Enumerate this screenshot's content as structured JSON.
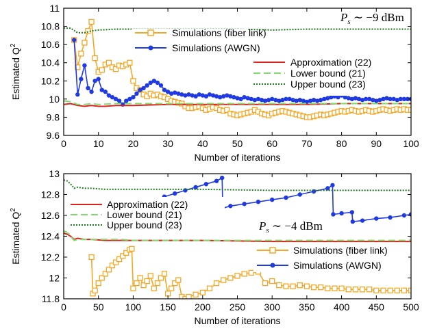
{
  "chart_data": [
    {
      "type": "line",
      "xlabel": "Number of iterations",
      "ylabel": "Estimated Q",
      "ylabel_sup": "2",
      "xlim": [
        0,
        100
      ],
      "ylim": [
        9.6,
        11
      ],
      "xticks": [
        0,
        10,
        20,
        30,
        40,
        50,
        60,
        70,
        80,
        90,
        100
      ],
      "yticks": [
        9.6,
        9.8,
        10,
        10.2,
        10.4,
        10.6,
        10.8,
        11
      ],
      "grid": false,
      "annotation": "P_s ~ −9 dBm",
      "legends": [
        "Simulations (fiber link)",
        "Simulations (AWGN)",
        "Approximation (22)",
        "Lower bound (21)",
        "Upper bound (23)"
      ],
      "series": [
        {
          "name": "Simulations (fiber link)",
          "color": "#f5a623",
          "marker": "square",
          "x": [
            3,
            4,
            5,
            6,
            7,
            8,
            9,
            10,
            11,
            12,
            13,
            14,
            15,
            16,
            17,
            18,
            19,
            20,
            21,
            22,
            23,
            24,
            25,
            26,
            27,
            28,
            29,
            30,
            31,
            32,
            33,
            34,
            35,
            36,
            37,
            38,
            39,
            40,
            41,
            42,
            43,
            44,
            45,
            46,
            47,
            48,
            49,
            50,
            51,
            52,
            53,
            54,
            55,
            56,
            57,
            58,
            59,
            60,
            61,
            62,
            63,
            64,
            65,
            66,
            67,
            68,
            69,
            70,
            71,
            72,
            73,
            74,
            75,
            76,
            77,
            78,
            79,
            80,
            81,
            82,
            83,
            84,
            85,
            86,
            87,
            88,
            89,
            90,
            91,
            92,
            93,
            94,
            95,
            96,
            97,
            98,
            99,
            100
          ],
          "values": [
            10.65,
            10.35,
            10.5,
            10.62,
            10.75,
            10.85,
            10.45,
            10.3,
            10.32,
            10.38,
            10.4,
            10.35,
            10.33,
            10.37,
            10.36,
            10.38,
            10.4,
            10.2,
            10.12,
            10.1,
            10.05,
            10.03,
            10.06,
            10.04,
            10.05,
            10.03,
            10.02,
            10.0,
            9.98,
            9.97,
            9.96,
            9.95,
            9.92,
            9.9,
            9.9,
            9.91,
            9.92,
            9.9,
            9.88,
            9.89,
            9.91,
            9.9,
            9.88,
            9.87,
            9.88,
            9.84,
            9.83,
            9.82,
            9.83,
            9.84,
            9.85,
            9.86,
            9.88,
            9.86,
            9.84,
            9.83,
            9.82,
            9.84,
            9.85,
            9.86,
            9.87,
            9.86,
            9.85,
            9.84,
            9.83,
            9.82,
            9.81,
            9.8,
            9.8,
            9.81,
            9.82,
            9.83,
            9.82,
            9.83,
            9.84,
            9.85,
            9.86,
            9.87,
            9.86,
            9.87,
            9.88,
            9.87,
            9.86,
            9.87,
            9.88,
            9.87,
            9.86,
            9.87,
            9.88,
            9.89,
            9.88,
            9.87,
            9.88,
            9.89,
            9.88,
            9.89,
            9.88,
            9.88
          ]
        },
        {
          "name": "Simulations (AWGN)",
          "color": "#1f3ae0",
          "marker": "circle",
          "x": [
            3,
            4,
            5,
            6,
            7,
            8,
            9,
            10,
            11,
            12,
            13,
            14,
            15,
            16,
            17,
            18,
            19,
            20,
            21,
            22,
            23,
            24,
            25,
            26,
            27,
            28,
            29,
            30,
            31,
            32,
            33,
            34,
            35,
            36,
            37,
            38,
            39,
            40,
            41,
            42,
            43,
            44,
            45,
            46,
            47,
            48,
            49,
            50,
            51,
            52,
            53,
            54,
            55,
            56,
            57,
            58,
            59,
            60,
            61,
            62,
            63,
            64,
            65,
            66,
            67,
            68,
            69,
            70,
            71,
            72,
            73,
            74,
            75,
            76,
            77,
            78,
            79,
            80,
            81,
            82,
            83,
            84,
            85,
            86,
            87,
            88,
            89,
            90,
            91,
            92,
            93,
            94,
            95,
            96,
            97,
            98,
            99,
            100
          ],
          "values": [
            10.65,
            10.05,
            10.22,
            10.37,
            10.12,
            10.08,
            10.2,
            10.22,
            10.1,
            10.08,
            10.04,
            10.02,
            10.0,
            9.98,
            9.94,
            9.98,
            10.0,
            10.02,
            10.06,
            10.1,
            10.12,
            10.15,
            10.18,
            10.2,
            10.18,
            10.15,
            10.1,
            10.08,
            10.06,
            10.07,
            10.06,
            10.05,
            10.04,
            10.05,
            10.04,
            10.03,
            10.05,
            10.04,
            10.03,
            10.05,
            10.04,
            10.03,
            10.02,
            10.03,
            10.04,
            10.03,
            10.02,
            10.01,
            10.0,
            10.02,
            10.01,
            10.0,
            9.99,
            10.0,
            9.99,
            9.98,
            9.99,
            10.0,
            9.99,
            9.98,
            9.99,
            10.0,
            10.0,
            9.99,
            9.98,
            9.99,
            9.98,
            9.97,
            9.98,
            9.99,
            9.98,
            9.99,
            10.0,
            10.01,
            10.02,
            10.03,
            10.02,
            10.04,
            10.02,
            10.01,
            10.0,
            10.01,
            10.0,
            9.99,
            10.0,
            10.0,
            9.99,
            9.98,
            9.99,
            10.0,
            10.01,
            10.0,
            10.0,
            9.99,
            10.0,
            10.0,
            10.0,
            10.0
          ]
        },
        {
          "name": "Approximation (22)",
          "color": "#e02020",
          "style": "solid",
          "x": [
            0,
            2,
            4,
            6,
            8,
            10,
            12,
            15,
            20,
            30,
            40,
            50,
            60,
            70,
            80,
            90,
            100
          ],
          "values": [
            9.94,
            9.95,
            9.93,
            9.92,
            9.93,
            9.92,
            9.92,
            9.93,
            9.93,
            9.94,
            9.94,
            9.94,
            9.94,
            9.94,
            9.95,
            9.95,
            9.95
          ]
        },
        {
          "name": "Lower bound (21)",
          "color": "#7ddc6a",
          "style": "dashed",
          "x": [
            0,
            2,
            4,
            6,
            8,
            10,
            15,
            20,
            30,
            40,
            50,
            60,
            70,
            80,
            90,
            100
          ],
          "values": [
            9.98,
            9.97,
            9.94,
            9.94,
            9.95,
            9.94,
            9.95,
            9.95,
            9.95,
            9.95,
            9.95,
            9.95,
            9.95,
            9.95,
            9.95,
            9.95
          ]
        },
        {
          "name": "Upper bound (23)",
          "color": "#1a7a1a",
          "style": "dotted",
          "x": [
            0,
            2,
            4,
            6,
            8,
            10,
            15,
            20,
            30,
            40,
            50,
            60,
            70,
            80,
            90,
            100
          ],
          "values": [
            10.78,
            10.78,
            10.73,
            10.73,
            10.75,
            10.76,
            10.77,
            10.77,
            10.77,
            10.77,
            10.77,
            10.76,
            10.77,
            10.77,
            10.77,
            10.77
          ]
        }
      ]
    },
    {
      "type": "line",
      "xlabel": "Number of iterations",
      "ylabel": "Estimated Q",
      "ylabel_sup": "2",
      "xlim": [
        0,
        500
      ],
      "ylim": [
        11.8,
        13
      ],
      "xticks": [
        0,
        50,
        100,
        150,
        200,
        250,
        300,
        350,
        400,
        450,
        500
      ],
      "yticks": [
        11.8,
        12,
        12.2,
        12.4,
        12.6,
        12.8,
        13
      ],
      "grid": false,
      "annotation": "P_s ~ −4 dBm",
      "legends": [
        "Approximation (22)",
        "Lower bound (21)",
        "Upper bound (23)",
        "Simulations (fiber link)",
        "Simulations (AWGN)"
      ],
      "series": [
        {
          "name": "Simulations (fiber link)",
          "color": "#f5a623",
          "marker": "square",
          "x": [
            40,
            42,
            45,
            50,
            55,
            60,
            65,
            70,
            75,
            80,
            85,
            90,
            95,
            98,
            100,
            105,
            110,
            115,
            120,
            125,
            130,
            135,
            140,
            145,
            150,
            155,
            160,
            165,
            170,
            175,
            180,
            190,
            200,
            210,
            220,
            230,
            240,
            250,
            260,
            270,
            280,
            290,
            300,
            310,
            320,
            330,
            340,
            350,
            360,
            370,
            380,
            390,
            400,
            410,
            420,
            430,
            440,
            450,
            460,
            470,
            480,
            490,
            500
          ],
          "values": [
            12.2,
            11.85,
            11.88,
            11.95,
            12.0,
            12.04,
            12.08,
            12.12,
            12.15,
            12.18,
            12.21,
            12.24,
            12.27,
            12.28,
            11.9,
            11.95,
            12.0,
            11.93,
            11.97,
            12.02,
            11.9,
            11.95,
            12.0,
            12.04,
            11.85,
            11.9,
            11.95,
            11.98,
            11.82,
            11.8,
            11.82,
            11.84,
            11.86,
            11.9,
            11.95,
            11.98,
            12.0,
            12.02,
            12.04,
            12.05,
            12.06,
            11.95,
            11.97,
            11.93,
            11.92,
            11.92,
            11.93,
            11.92,
            11.91,
            11.91,
            11.9,
            11.9,
            11.9,
            11.89,
            11.89,
            11.89,
            11.89,
            11.88,
            11.88,
            11.88,
            11.88,
            11.88,
            11.88
          ]
        },
        {
          "name": "Simulations (AWGN)",
          "color": "#1f3ae0",
          "marker": "circle",
          "x": [
            145,
            160,
            175,
            190,
            205,
            220,
            228,
            229,
            240,
            260,
            280,
            300,
            320,
            340,
            360,
            380,
            387,
            388,
            400,
            415,
            416,
            430,
            450,
            470,
            490,
            500
          ],
          "values": [
            12.78,
            12.81,
            12.84,
            12.87,
            12.9,
            12.93,
            12.96,
            12.67,
            12.69,
            12.71,
            12.73,
            12.75,
            12.77,
            12.8,
            12.83,
            12.86,
            12.89,
            12.61,
            12.62,
            12.63,
            12.54,
            12.55,
            12.57,
            12.58,
            12.6,
            12.61
          ]
        },
        {
          "name": "Approximation (22)",
          "color": "#e02020",
          "style": "solid",
          "x": [
            0,
            5,
            10,
            15,
            20,
            30,
            40,
            60,
            80,
            100,
            150,
            200,
            300,
            400,
            500
          ],
          "values": [
            12.43,
            12.42,
            12.4,
            12.37,
            12.38,
            12.37,
            12.37,
            12.36,
            12.36,
            12.36,
            12.36,
            12.36,
            12.35,
            12.35,
            12.35
          ]
        },
        {
          "name": "Lower bound (21)",
          "color": "#7ddc6a",
          "style": "dashed",
          "x": [
            0,
            5,
            10,
            15,
            20,
            30,
            40,
            60,
            80,
            100,
            150,
            200,
            300,
            400,
            500
          ],
          "values": [
            12.45,
            12.44,
            12.4,
            12.36,
            12.37,
            12.37,
            12.37,
            12.37,
            12.37,
            12.36,
            12.36,
            12.36,
            12.36,
            12.36,
            12.36
          ]
        },
        {
          "name": "Upper bound (23)",
          "color": "#1a7a1a",
          "style": "dotted",
          "x": [
            0,
            5,
            10,
            15,
            20,
            30,
            40,
            60,
            80,
            100,
            150,
            200,
            300,
            400,
            500
          ],
          "values": [
            12.94,
            12.93,
            12.9,
            12.86,
            12.87,
            12.86,
            12.86,
            12.85,
            12.85,
            12.85,
            12.85,
            12.85,
            12.84,
            12.84,
            12.84
          ]
        }
      ]
    }
  ]
}
